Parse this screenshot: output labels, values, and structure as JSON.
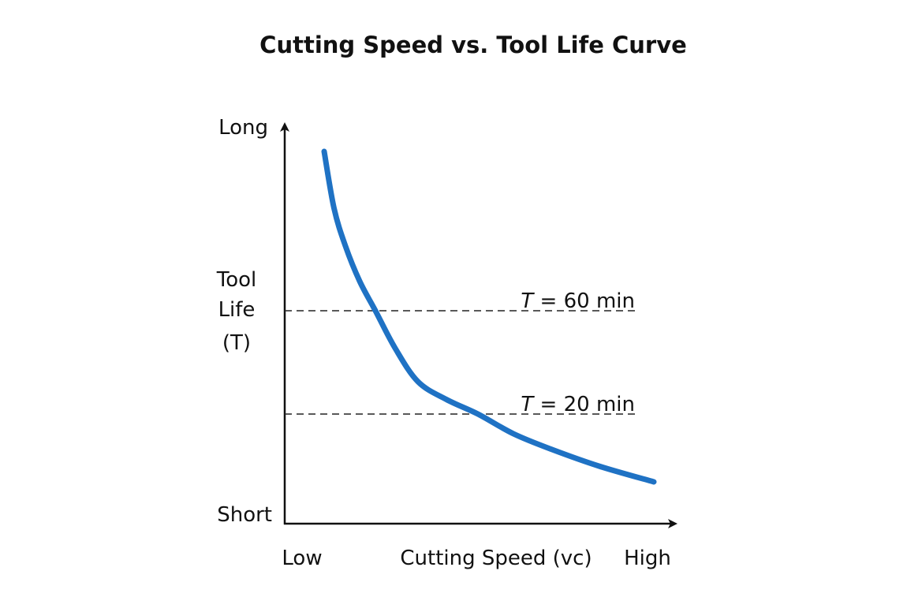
{
  "chart_data": {
    "type": "line",
    "title": "Cutting Speed vs. Tool Life Curve",
    "xlabel": "Cutting Speed (vc)",
    "ylabel": [
      "Tool",
      "Life",
      "(T)"
    ],
    "x_ticks": {
      "low": "Low",
      "high": "High"
    },
    "y_ticks": {
      "high": "Long",
      "low": "Short"
    },
    "xlim": [
      0,
      100
    ],
    "ylim": [
      0,
      100
    ],
    "grid": false,
    "series": [
      {
        "color": "#1f72c4",
        "x": [
          10,
          12.5,
          15.4,
          19,
          23,
          28,
          33.8,
          41,
          49,
          58,
          67.8,
          80,
          93.6
        ],
        "y": [
          94.4,
          80,
          70.4,
          61.5,
          54,
          44.5,
          36,
          31.5,
          27.8,
          22.8,
          18.8,
          14.5,
          10.6
        ]
      }
    ],
    "reference_lines": [
      {
        "label": "T = 60 min",
        "var": "T",
        "rest": " = 60 min",
        "y": 54
      },
      {
        "label": "T = 20 min",
        "var": "T",
        "rest": " = 20 min",
        "y": 27.8
      }
    ]
  }
}
